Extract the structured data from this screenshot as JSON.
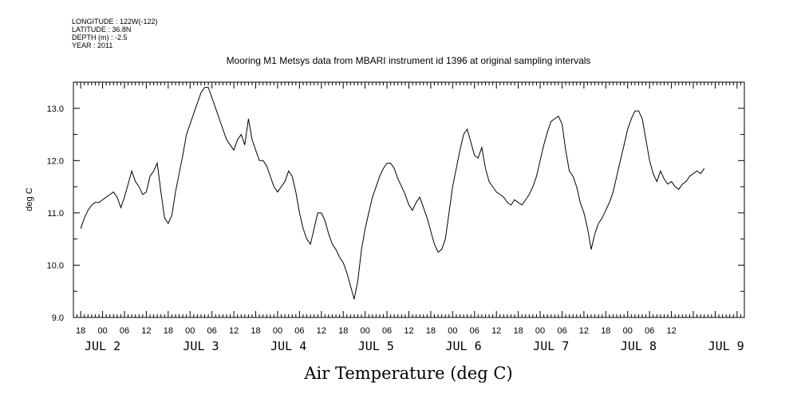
{
  "metadata": {
    "longitude": "LONGITUDE : 122W(-122)",
    "latitude": "LATITUDE : 36.8N",
    "depth": "DEPTH (m) : -2.5",
    "year": "YEAR : 2011"
  },
  "chart_data": {
    "type": "line",
    "title": "Mooring M1 Metsys data from MBARI instrument id 1396 at original sampling intervals",
    "xlabel": "Air Temperature (deg C)",
    "ylabel": "deg C",
    "ylim": [
      9.0,
      13.5
    ],
    "xlim_hours": [
      -8,
      176
    ],
    "y_ticks": [
      "9.0",
      "10.0",
      "11.0",
      "12.0",
      "13.0"
    ],
    "x_hour_ticks": [
      "18",
      "00",
      "06",
      "12",
      "18",
      "00",
      "06",
      "12",
      "18",
      "00",
      "06",
      "12",
      "18",
      "00",
      "06",
      "12",
      "18",
      "00",
      "06",
      "12",
      "18",
      "00",
      "06",
      "12",
      "18",
      "00",
      "06",
      "12"
    ],
    "x_day_ticks": [
      "JUL 2",
      "JUL 3",
      "JUL 4",
      "JUL 5",
      "JUL 6",
      "JUL 7",
      "JUL 8",
      "JUL 9"
    ],
    "grid": false,
    "series": [
      {
        "color": "#000000",
        "x_unit": "hours since JUL 2 00:00",
        "points": [
          [
            -6,
            10.7
          ],
          [
            -5,
            10.9
          ],
          [
            -4,
            11.05
          ],
          [
            -3,
            11.15
          ],
          [
            -2,
            11.2
          ],
          [
            -1,
            11.2
          ],
          [
            0,
            11.25
          ],
          [
            1,
            11.3
          ],
          [
            2,
            11.35
          ],
          [
            3,
            11.4
          ],
          [
            4,
            11.3
          ],
          [
            5,
            11.1
          ],
          [
            6,
            11.3
          ],
          [
            7,
            11.55
          ],
          [
            8,
            11.8
          ],
          [
            9,
            11.6
          ],
          [
            10,
            11.5
          ],
          [
            11,
            11.35
          ],
          [
            12,
            11.4
          ],
          [
            13,
            11.7
          ],
          [
            14,
            11.8
          ],
          [
            15,
            11.95
          ],
          [
            16,
            11.4
          ],
          [
            17,
            10.9
          ],
          [
            18,
            10.8
          ],
          [
            19,
            10.95
          ],
          [
            20,
            11.4
          ],
          [
            21,
            11.75
          ],
          [
            22,
            12.1
          ],
          [
            23,
            12.5
          ],
          [
            24,
            12.7
          ],
          [
            25,
            12.9
          ],
          [
            26,
            13.1
          ],
          [
            27,
            13.3
          ],
          [
            28,
            13.4
          ],
          [
            29,
            13.4
          ],
          [
            30,
            13.2
          ],
          [
            31,
            13.0
          ],
          [
            32,
            12.8
          ],
          [
            33,
            12.6
          ],
          [
            34,
            12.4
          ],
          [
            35,
            12.3
          ],
          [
            36,
            12.2
          ],
          [
            37,
            12.4
          ],
          [
            38,
            12.5
          ],
          [
            39,
            12.3
          ],
          [
            40,
            12.8
          ],
          [
            41,
            12.4
          ],
          [
            42,
            12.2
          ],
          [
            43,
            12.0
          ],
          [
            44,
            12.0
          ],
          [
            45,
            11.9
          ],
          [
            46,
            11.7
          ],
          [
            47,
            11.5
          ],
          [
            48,
            11.4
          ],
          [
            49,
            11.5
          ],
          [
            50,
            11.6
          ],
          [
            51,
            11.8
          ],
          [
            52,
            11.7
          ],
          [
            53,
            11.4
          ],
          [
            54,
            11.0
          ],
          [
            55,
            10.7
          ],
          [
            56,
            10.5
          ],
          [
            57,
            10.4
          ],
          [
            58,
            10.7
          ],
          [
            59,
            11.0
          ],
          [
            60,
            11.0
          ],
          [
            61,
            10.85
          ],
          [
            62,
            10.6
          ],
          [
            63,
            10.4
          ],
          [
            64,
            10.3
          ],
          [
            65,
            10.15
          ],
          [
            66,
            10.05
          ],
          [
            67,
            9.85
          ],
          [
            68,
            9.6
          ],
          [
            69,
            9.35
          ],
          [
            70,
            9.7
          ],
          [
            71,
            10.3
          ],
          [
            72,
            10.7
          ],
          [
            73,
            11.0
          ],
          [
            74,
            11.3
          ],
          [
            75,
            11.5
          ],
          [
            76,
            11.7
          ],
          [
            77,
            11.85
          ],
          [
            78,
            11.95
          ],
          [
            79,
            11.95
          ],
          [
            80,
            11.85
          ],
          [
            81,
            11.65
          ],
          [
            82,
            11.5
          ],
          [
            83,
            11.35
          ],
          [
            84,
            11.15
          ],
          [
            85,
            11.05
          ],
          [
            86,
            11.2
          ],
          [
            87,
            11.3
          ],
          [
            88,
            11.1
          ],
          [
            89,
            10.9
          ],
          [
            90,
            10.65
          ],
          [
            91,
            10.4
          ],
          [
            92,
            10.25
          ],
          [
            93,
            10.3
          ],
          [
            94,
            10.5
          ],
          [
            95,
            11.0
          ],
          [
            96,
            11.5
          ],
          [
            97,
            11.85
          ],
          [
            98,
            12.2
          ],
          [
            99,
            12.5
          ],
          [
            100,
            12.6
          ],
          [
            101,
            12.35
          ],
          [
            102,
            12.1
          ],
          [
            103,
            12.05
          ],
          [
            104,
            12.25
          ],
          [
            105,
            11.85
          ],
          [
            106,
            11.6
          ],
          [
            107,
            11.5
          ],
          [
            108,
            11.4
          ],
          [
            109,
            11.35
          ],
          [
            110,
            11.3
          ],
          [
            111,
            11.2
          ],
          [
            112,
            11.15
          ],
          [
            113,
            11.25
          ],
          [
            114,
            11.2
          ],
          [
            115,
            11.15
          ],
          [
            116,
            11.25
          ],
          [
            117,
            11.35
          ],
          [
            118,
            11.5
          ],
          [
            119,
            11.7
          ],
          [
            120,
            12.0
          ],
          [
            121,
            12.3
          ],
          [
            122,
            12.55
          ],
          [
            123,
            12.75
          ],
          [
            124,
            12.8
          ],
          [
            125,
            12.85
          ],
          [
            126,
            12.7
          ],
          [
            127,
            12.2
          ],
          [
            128,
            11.8
          ],
          [
            129,
            11.7
          ],
          [
            130,
            11.5
          ],
          [
            131,
            11.2
          ],
          [
            132,
            11.0
          ],
          [
            133,
            10.7
          ],
          [
            134,
            10.3
          ],
          [
            135,
            10.6
          ],
          [
            136,
            10.8
          ],
          [
            137,
            10.9
          ],
          [
            138,
            11.05
          ],
          [
            139,
            11.2
          ],
          [
            140,
            11.4
          ],
          [
            141,
            11.7
          ],
          [
            142,
            12.0
          ],
          [
            143,
            12.3
          ],
          [
            144,
            12.6
          ],
          [
            145,
            12.8
          ],
          [
            146,
            12.95
          ],
          [
            147,
            12.95
          ],
          [
            148,
            12.8
          ],
          [
            149,
            12.4
          ],
          [
            150,
            12.0
          ],
          [
            151,
            11.75
          ],
          [
            152,
            11.6
          ],
          [
            153,
            11.8
          ],
          [
            154,
            11.65
          ],
          [
            155,
            11.55
          ],
          [
            156,
            11.6
          ],
          [
            157,
            11.5
          ],
          [
            158,
            11.45
          ],
          [
            159,
            11.55
          ],
          [
            160,
            11.6
          ],
          [
            161,
            11.7
          ],
          [
            162,
            11.75
          ],
          [
            163,
            11.8
          ],
          [
            164,
            11.75
          ],
          [
            165,
            11.85
          ]
        ]
      }
    ]
  }
}
